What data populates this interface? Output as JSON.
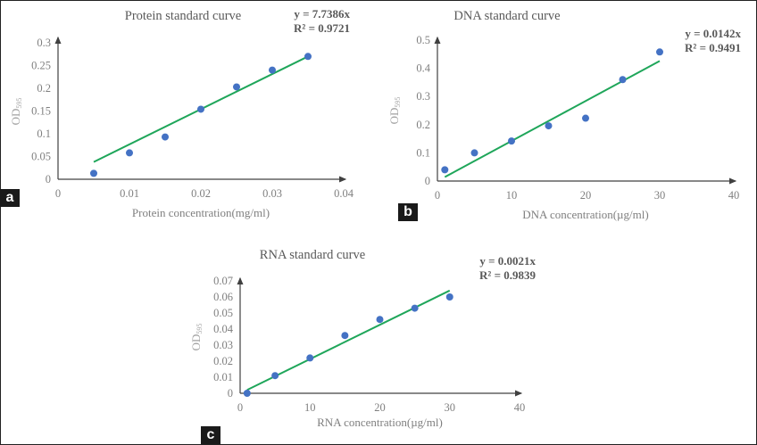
{
  "chart_data": [
    {
      "id": "a",
      "type": "scatter",
      "panel_label": "a",
      "title": "Protein standard curve",
      "xlabel": "Protein concentration(mg/ml)",
      "ylabel": "OD",
      "ylabel_sub": "595",
      "xlim": [
        0,
        0.04
      ],
      "ylim": [
        0,
        0.3
      ],
      "xticks": [
        "0",
        "0.01",
        "0.02",
        "0.03",
        "0.04"
      ],
      "xtick_values": [
        0,
        0.01,
        0.02,
        0.03,
        0.04
      ],
      "yticks": [
        "0",
        "0.05",
        "0.1",
        "0.15",
        "0.2",
        "0.25",
        "0.3"
      ],
      "ytick_values": [
        0,
        0.05,
        0.1,
        0.15,
        0.2,
        0.25,
        0.3
      ],
      "x": [
        0.005,
        0.01,
        0.015,
        0.02,
        0.025,
        0.03,
        0.035
      ],
      "y": [
        0.013,
        0.058,
        0.093,
        0.154,
        0.203,
        0.24,
        0.27
      ],
      "trendline": {
        "slope": 7.7386,
        "x_range": [
          0.005,
          0.035
        ],
        "y_start": 0.038,
        "y_end": 0.27
      },
      "equation": "y = 7.7386x",
      "r2": "R² = 0.9721",
      "grid": false
    },
    {
      "id": "b",
      "type": "scatter",
      "panel_label": "b",
      "title": "DNA standard curve",
      "xlabel": "DNA concentration(µg/ml)",
      "ylabel": "OD",
      "ylabel_sub": "595",
      "xlim": [
        0,
        40
      ],
      "ylim": [
        0,
        0.5
      ],
      "xticks": [
        "0",
        "10",
        "20",
        "30",
        "40"
      ],
      "xtick_values": [
        0,
        10,
        20,
        30,
        40
      ],
      "yticks": [
        "0",
        "0.1",
        "0.2",
        "0.3",
        "0.4",
        "0.5"
      ],
      "ytick_values": [
        0,
        0.1,
        0.2,
        0.3,
        0.4,
        0.5
      ],
      "x": [
        1,
        5,
        10,
        15,
        20,
        25,
        30
      ],
      "y": [
        0.04,
        0.1,
        0.142,
        0.196,
        0.223,
        0.36,
        0.458
      ],
      "trendline": {
        "slope": 0.0142,
        "x_range": [
          1,
          30
        ],
        "y_start": 0.0142,
        "y_end": 0.426
      },
      "equation": "y = 0.0142x",
      "r2": "R² = 0.9491",
      "grid": false
    },
    {
      "id": "c",
      "type": "scatter",
      "panel_label": "c",
      "title": "RNA standard curve",
      "xlabel": "RNA concentration(µg/ml)",
      "ylabel": "OD",
      "ylabel_sub": "595",
      "xlim": [
        0,
        40
      ],
      "ylim": [
        0,
        0.07
      ],
      "xticks": [
        "0",
        "10",
        "20",
        "30",
        "40"
      ],
      "xtick_values": [
        0,
        10,
        20,
        30,
        40
      ],
      "yticks": [
        "0",
        "0.01",
        "0.02",
        "0.03",
        "0.04",
        "0.05",
        "0.06",
        "0.07"
      ],
      "ytick_values": [
        0,
        0.01,
        0.02,
        0.03,
        0.04,
        0.05,
        0.06,
        0.07
      ],
      "x": [
        1,
        5,
        10,
        15,
        20,
        25,
        30
      ],
      "y": [
        0.0,
        0.011,
        0.022,
        0.036,
        0.046,
        0.053,
        0.06
      ],
      "trendline": {
        "slope": 0.0021,
        "x_range": [
          1,
          30
        ],
        "y_start": 0.0021,
        "y_end": 0.064
      },
      "equation": "y = 0.0021x",
      "r2": "R² = 0.9839",
      "grid": false
    }
  ],
  "colors": {
    "point": "#4472c4",
    "trendline": "#1fa65a",
    "axis": "#404040"
  }
}
